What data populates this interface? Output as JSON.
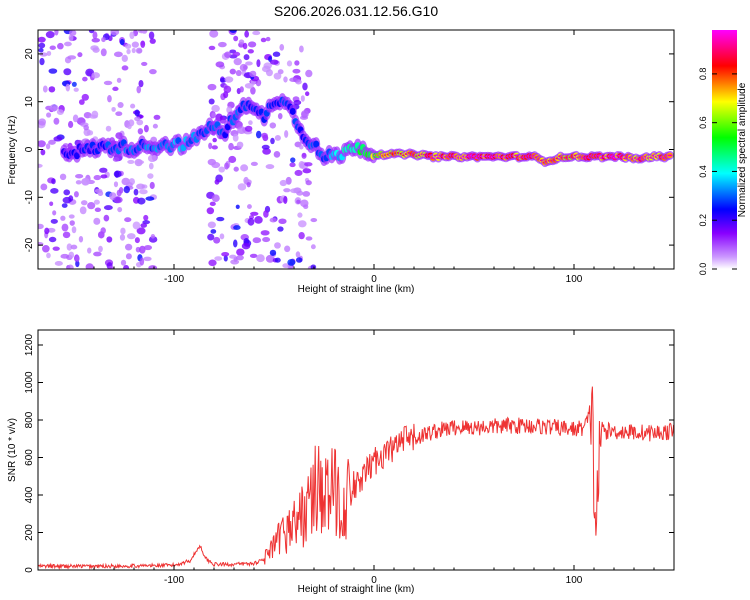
{
  "title": "S206.2026.031.12.56.G10",
  "chart_data": [
    {
      "type": "heatmap",
      "xlabel": "Height of straight line (km)",
      "ylabel": "Frequency (Hz)",
      "xlim": [
        -168,
        150
      ],
      "ylim": [
        -25,
        25
      ],
      "xticks": [
        "-100",
        "0",
        "100"
      ],
      "yticks": [
        "20",
        "10",
        "0",
        "-10",
        "-20"
      ],
      "colorbar": {
        "label": "Normalized spectral amplitude",
        "ticks": [
          "0.0",
          "0.2",
          "0.4",
          "0.6",
          "0.8"
        ],
        "colors": [
          "#ffffff",
          "#8800ff",
          "#0000ff",
          "#00ffff",
          "#00ff00",
          "#ffff00",
          "#ff0000",
          "#ff00ff"
        ]
      },
      "ridge": {
        "x": [
          -150,
          -135,
          -120,
          -105,
          -95,
          -90,
          -85,
          -80,
          -75,
          -70,
          -65,
          -60,
          -55,
          -50,
          -45,
          -40,
          -35,
          -30,
          -25,
          -20,
          -15,
          -10,
          -5,
          0,
          10,
          20,
          30,
          40,
          50,
          60,
          70,
          80,
          85,
          90,
          95,
          100,
          105,
          110,
          120,
          125,
          130,
          140,
          148
        ],
        "y": [
          -0.5,
          0.5,
          0.5,
          1,
          1,
          2,
          4,
          5,
          3,
          7,
          10,
          8,
          7,
          10,
          11,
          7,
          3,
          1,
          -2,
          -1,
          -1,
          1,
          0,
          -1,
          -1,
          -1,
          -1.5,
          -1.5,
          -1.5,
          -1.5,
          -1.5,
          -1.5,
          -2.5,
          -2,
          -1.5,
          -1.5,
          -1.5,
          -1.5,
          -1.5,
          -1.5,
          -2,
          -1.5,
          -1.5
        ],
        "amplitude": [
          0.25,
          0.3,
          0.35,
          0.35,
          0.4,
          0.35,
          0.35,
          0.35,
          0.3,
          0.35,
          0.3,
          0.3,
          0.3,
          0.3,
          0.3,
          0.3,
          0.3,
          0.35,
          0.35,
          0.4,
          0.45,
          0.55,
          0.6,
          0.7,
          0.8,
          0.85,
          0.9,
          0.9,
          0.95,
          0.95,
          0.9,
          0.9,
          0.85,
          0.85,
          0.85,
          0.85,
          0.9,
          0.9,
          0.95,
          0.9,
          0.9,
          0.9,
          0.9
        ]
      }
    },
    {
      "type": "line",
      "xlabel": "Height of straight line (km)",
      "ylabel": "SNR (10 * v/v)",
      "xlim": [
        -168,
        150
      ],
      "ylim": [
        0,
        1280
      ],
      "xticks": [
        "-100",
        "0",
        "100"
      ],
      "yticks": [
        "0",
        "200",
        "400",
        "600",
        "800",
        "1000",
        "1200"
      ],
      "color": "#ee3333",
      "series": [
        {
          "x": [
            -168,
            -140,
            -120,
            -100,
            -92,
            -87,
            -84,
            -80,
            -70,
            -60,
            -55,
            -50,
            -45,
            -40,
            -35,
            -30,
            -27,
            -25,
            -20,
            -15,
            -10,
            -5,
            0,
            5,
            10,
            15,
            20,
            25,
            30,
            40,
            50,
            60,
            70,
            80,
            90,
            100,
            105,
            107,
            109,
            110,
            111,
            112,
            114,
            116,
            120,
            130,
            140,
            150
          ],
          "y": [
            20,
            20,
            22,
            25,
            50,
            130,
            60,
            30,
            30,
            35,
            60,
            120,
            200,
            250,
            300,
            400,
            500,
            380,
            420,
            350,
            420,
            500,
            580,
            620,
            650,
            690,
            700,
            720,
            740,
            760,
            760,
            765,
            770,
            770,
            760,
            750,
            760,
            800,
            900,
            450,
            200,
            500,
            760,
            740,
            740,
            735,
            730,
            740
          ]
        }
      ]
    }
  ]
}
